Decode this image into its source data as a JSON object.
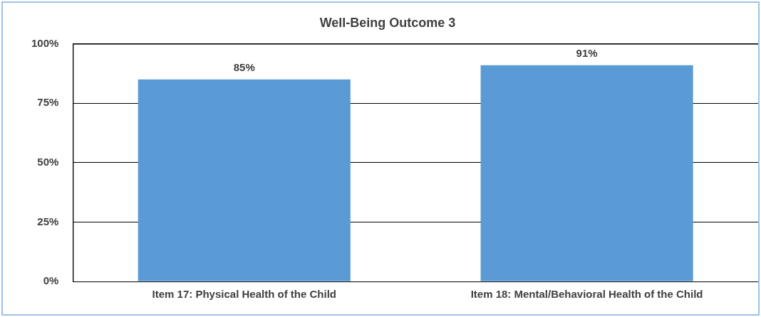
{
  "chart_data": {
    "type": "bar",
    "title": "Well-Being Outcome 3",
    "categories": [
      "Item 17: Physical Health of the Child",
      "Item 18: Mental/Behavioral Health of the Child"
    ],
    "values": [
      85,
      91
    ],
    "value_labels": [
      "85%",
      "91%"
    ],
    "color": "#5b9bd5",
    "ylim": [
      0,
      100
    ],
    "yticks": [
      {
        "value": 0,
        "label": "0%"
      },
      {
        "value": 25,
        "label": "25%"
      },
      {
        "value": 50,
        "label": "50%"
      },
      {
        "value": 75,
        "label": "75%"
      },
      {
        "value": 100,
        "label": "100%"
      }
    ],
    "grid": "y",
    "legend": false
  }
}
